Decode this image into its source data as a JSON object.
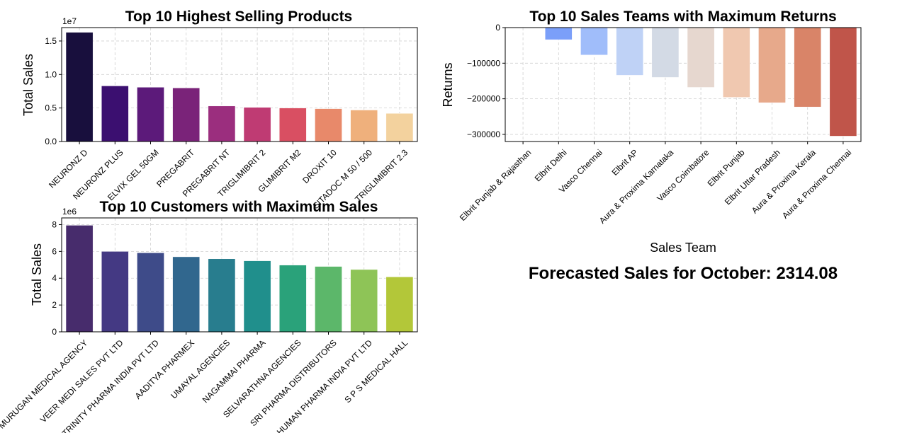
{
  "charts": [
    {
      "id": "products",
      "type": "bar",
      "title": "Top 10 Highest Selling Products",
      "ylabel": "Total Sales",
      "xlabel": "",
      "y_exponent": "1e7",
      "ylim": [
        0,
        17000000
      ],
      "yticks": [
        0,
        5000000,
        10000000,
        15000000
      ],
      "ytick_labels": [
        "0.0",
        "0.5",
        "1.0",
        "1.5"
      ],
      "grid": true,
      "categories": [
        "NEURONZ D",
        "NEURONZ PLUS",
        "ELVIX GEL 50GM",
        "PREGABRIT",
        "PREGABRIT NT",
        "TRIGLIMIBRIT 2",
        "GLIMIBRIT M2",
        "DROXIT 10",
        "SITADOC M 50 / 500",
        "TRIGLIMIBRIT 2.3"
      ],
      "values": [
        16300000,
        8300000,
        8100000,
        8000000,
        5300000,
        5100000,
        5000000,
        4900000,
        4700000,
        4200000
      ],
      "colors": [
        "#180f3d",
        "#3b0f70",
        "#5c1a7a",
        "#7a2379",
        "#9b2e7e",
        "#bf3b73",
        "#d94f62",
        "#e8896a",
        "#efb07c",
        "#f3d29e"
      ]
    },
    {
      "id": "teams",
      "type": "bar",
      "title": "Top 10 Sales Teams with Maximum Returns",
      "ylabel": "Returns",
      "xlabel": "Sales Team",
      "ylim": [
        -320000,
        0
      ],
      "yticks": [
        0,
        -100000,
        -200000,
        -300000
      ],
      "ytick_labels": [
        "0",
        "−100000",
        "−200000",
        "−300000"
      ],
      "grid": true,
      "categories": [
        "Elbrit Punjab & Rajasthan",
        "Elbrit Delhi",
        "Vasco Chennai",
        "Elbrit AP",
        "Aura & Proxima Karnataka",
        "Vasco Coimbatore",
        "Elbrit Punjab",
        "Elbrit Uttar Pradesh",
        "Aura & Proxima Kerala",
        "Aura & Proxima Chennai"
      ],
      "values": [
        0,
        -34000,
        -77000,
        -134000,
        -140000,
        -168000,
        -196000,
        -211000,
        -223000,
        -305000
      ],
      "colors": [
        "#3b4cc0",
        "#7b9ff9",
        "#a0bdfa",
        "#bfd2f6",
        "#d3dae5",
        "#e6d7cf",
        "#f0c8b0",
        "#e7a98b",
        "#d98468",
        "#c0554a"
      ]
    },
    {
      "id": "customers",
      "type": "bar",
      "title": "Top 10 Customers with Maximum Sales",
      "ylabel": "Total Sales",
      "xlabel": "",
      "y_exponent": "1e6",
      "ylim": [
        0,
        8500000
      ],
      "yticks": [
        0,
        2000000,
        4000000,
        6000000,
        8000000
      ],
      "ytick_labels": [
        "0",
        "2",
        "4",
        "6",
        "8"
      ],
      "grid": true,
      "categories": [
        "MURUGAN MEDICAL AGENCY",
        "VEER MEDI SALES PVT LTD",
        "TRINITY PHARMA INDIA PVT LTD",
        "AADITYA PHARMEX",
        "UMAYAL AGENCIES",
        "NAGAMMAI PHARMA",
        "SELVARATHNA AGENCIES",
        "SRI PHARMA DISTRIBUTORS",
        "HUMAN PHARMA INDIA PVT LTD",
        "S P S MEDICAL HALL"
      ],
      "values": [
        7950000,
        6000000,
        5900000,
        5600000,
        5450000,
        5300000,
        4980000,
        4880000,
        4650000,
        4100000
      ],
      "colors": [
        "#472c6c",
        "#443983",
        "#3e4b89",
        "#31678e",
        "#287d8e",
        "#208f8c",
        "#2aa27a",
        "#5cb76a",
        "#8ec457",
        "#b3c739"
      ]
    }
  ],
  "forecast": {
    "text": "Forecasted Sales for October: 2314.08",
    "color": "#00008b"
  }
}
